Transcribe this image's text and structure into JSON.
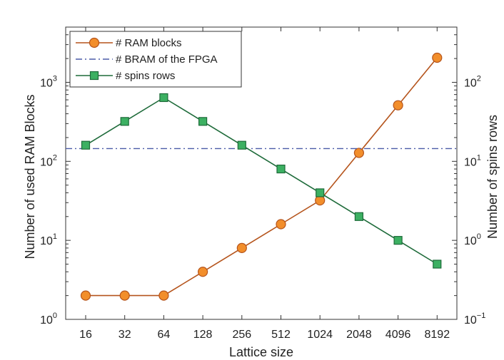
{
  "chart_data": {
    "type": "line",
    "categories": [
      "16",
      "32",
      "64",
      "128",
      "256",
      "512",
      "1024",
      "2048",
      "4096",
      "8192"
    ],
    "xlabel": "Lattice size",
    "ylabel_left": "Number of used RAM Blocks",
    "ylabel_right": "Number of spins rows",
    "left_axis": {
      "scale": "log",
      "range": [
        1,
        5000
      ],
      "ticks": [
        {
          "value": 1,
          "mantissa": "10",
          "exponent": "0"
        },
        {
          "value": 10,
          "mantissa": "10",
          "exponent": "1"
        },
        {
          "value": 100,
          "mantissa": "10",
          "exponent": "2"
        },
        {
          "value": 1000,
          "mantissa": "10",
          "exponent": "3"
        }
      ]
    },
    "right_axis": {
      "scale": "log",
      "range": [
        0.1,
        500
      ],
      "ticks": [
        {
          "value": 0.1,
          "mantissa": "10",
          "exponent": "−1"
        },
        {
          "value": 1,
          "mantissa": "10",
          "exponent": "0"
        },
        {
          "value": 10,
          "mantissa": "10",
          "exponent": "1"
        },
        {
          "value": 100,
          "mantissa": "10",
          "exponent": "2"
        }
      ]
    },
    "series": [
      {
        "name": "# RAM blocks",
        "axis": "left",
        "marker": "circle",
        "color": "#b5541c",
        "fill": "#f28e2b",
        "values": [
          2,
          2,
          2,
          4,
          8,
          16,
          32,
          128,
          512,
          2048
        ]
      },
      {
        "name": "# BRAM of the FPGA",
        "axis": "left",
        "marker": "none",
        "line_style": "dashdot",
        "color": "#4b5ba8",
        "values": [
          145,
          145,
          145,
          145,
          145,
          145,
          145,
          145,
          145,
          145
        ]
      },
      {
        "name": "# spins rows",
        "axis": "right",
        "marker": "square",
        "color": "#1e6b3a",
        "fill": "#3cb062",
        "values": [
          16,
          32,
          64,
          32,
          16,
          8,
          4,
          2,
          1,
          0.5
        ]
      }
    ],
    "legend_position": "top-left",
    "grid": false
  }
}
